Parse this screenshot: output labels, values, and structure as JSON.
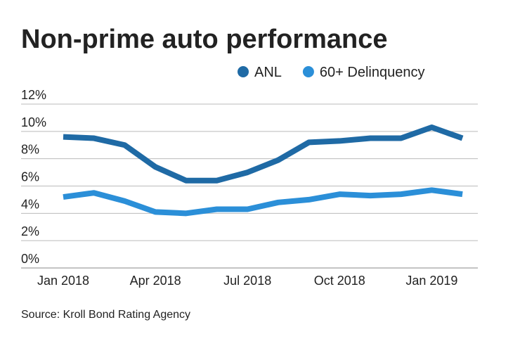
{
  "chart_data": {
    "type": "line",
    "title": "Non-prime auto performance",
    "source": "Source: Kroll Bond Rating Agency",
    "categories": [
      "Jan 2018",
      null,
      null,
      "Apr 2018",
      null,
      null,
      "Jul 2018",
      null,
      null,
      "Oct 2018",
      null,
      null,
      "Jan 2019",
      null
    ],
    "series": [
      {
        "name": "ANL",
        "color": "#1f6aa5",
        "values": [
          9.6,
          9.5,
          9.0,
          7.4,
          6.4,
          6.4,
          7.0,
          7.9,
          9.2,
          9.3,
          9.5,
          9.5,
          10.3,
          9.5
        ]
      },
      {
        "name": "60+ Delinquency",
        "color": "#2b8fd8",
        "values": [
          5.2,
          5.5,
          4.9,
          4.1,
          4.0,
          4.3,
          4.3,
          4.8,
          5.0,
          5.4,
          5.3,
          5.4,
          5.7,
          5.4
        ]
      }
    ],
    "ylim": [
      0,
      12
    ],
    "yticks": [
      {
        "value": 0,
        "label": "0%"
      },
      {
        "value": 2,
        "label": "2%"
      },
      {
        "value": 4,
        "label": "4%"
      },
      {
        "value": 6,
        "label": "6%"
      },
      {
        "value": 8,
        "label": "8%"
      },
      {
        "value": 10,
        "label": "10%"
      },
      {
        "value": 12,
        "label": "12%"
      }
    ],
    "grid": true,
    "legend": "top-right"
  }
}
